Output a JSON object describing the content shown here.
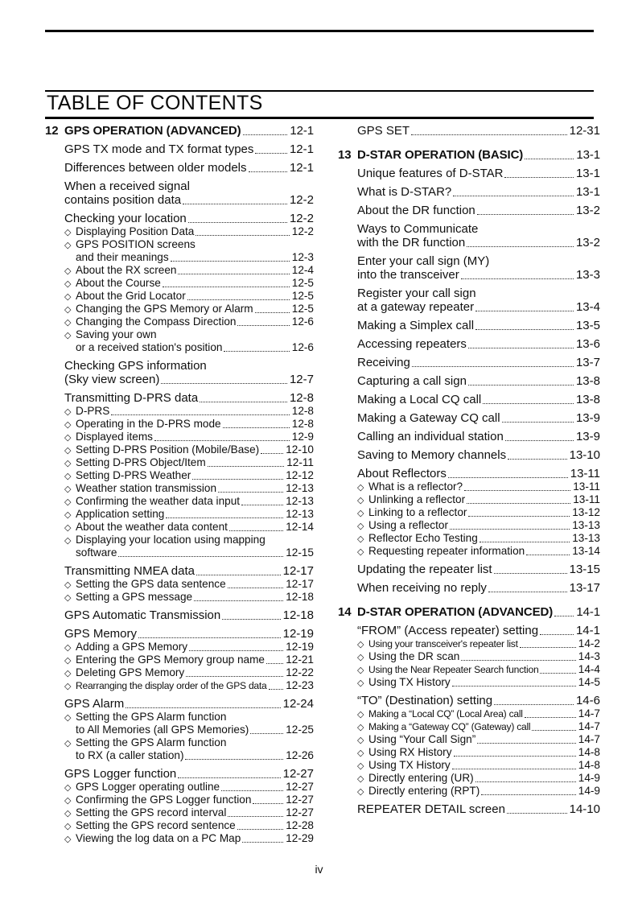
{
  "page": {
    "title": "TABLE OF CONTENTS",
    "footer_page_number": "iv"
  },
  "icons": {
    "subsection_marker": "◇"
  },
  "colors": {
    "text": "#101010",
    "rule": "#000000",
    "background": "#ffffff"
  },
  "toc": {
    "left": [
      {
        "type": "chapter",
        "num": "12",
        "lines": [
          "GPS OPERATION (ADVANCED)"
        ],
        "page": "12-1"
      },
      {
        "type": "section",
        "lines": [
          "GPS TX mode and TX format types"
        ],
        "page": "12-1"
      },
      {
        "type": "section",
        "lines": [
          "Differences between older models"
        ],
        "page": "12-1"
      },
      {
        "type": "section",
        "lines": [
          "When a received signal",
          "contains position data"
        ],
        "page": "12-2"
      },
      {
        "type": "section",
        "lines": [
          "Checking your location"
        ],
        "page": "12-2"
      },
      {
        "type": "sub",
        "lines": [
          "Displaying Position Data"
        ],
        "page": "12-2"
      },
      {
        "type": "sub",
        "lines": [
          "GPS POSITION screens",
          "and their meanings"
        ],
        "page": "12-3"
      },
      {
        "type": "sub",
        "lines": [
          "About the RX screen"
        ],
        "page": "12-4"
      },
      {
        "type": "sub",
        "lines": [
          "About the Course"
        ],
        "page": "12-5"
      },
      {
        "type": "sub",
        "lines": [
          "About the Grid Locator"
        ],
        "page": "12-5"
      },
      {
        "type": "sub",
        "lines": [
          "Changing the GPS Memory or Alarm"
        ],
        "page": "12-5"
      },
      {
        "type": "sub",
        "lines": [
          "Changing the Compass Direction"
        ],
        "page": "12-6"
      },
      {
        "type": "sub",
        "lines": [
          "Saving your own",
          "or a received station's position"
        ],
        "page": "12-6"
      },
      {
        "type": "section",
        "lines": [
          "Checking GPS information",
          "(Sky view screen)"
        ],
        "page": "12-7"
      },
      {
        "type": "section",
        "lines": [
          "Transmitting D-PRS data"
        ],
        "page": "12-8"
      },
      {
        "type": "sub",
        "lines": [
          "D-PRS"
        ],
        "page": "12-8"
      },
      {
        "type": "sub",
        "lines": [
          "Operating in the D-PRS mode"
        ],
        "page": "12-8"
      },
      {
        "type": "sub",
        "lines": [
          "Displayed items"
        ],
        "page": "12-9"
      },
      {
        "type": "sub",
        "lines": [
          "Setting D-PRS Position (Mobile/Base)"
        ],
        "page": "12-10"
      },
      {
        "type": "sub",
        "lines": [
          "Setting D-PRS Object/Item"
        ],
        "page": "12-11"
      },
      {
        "type": "sub",
        "lines": [
          "Setting D-PRS Weather"
        ],
        "page": "12-12"
      },
      {
        "type": "sub",
        "lines": [
          "Weather station transmission"
        ],
        "page": "12-13"
      },
      {
        "type": "sub",
        "lines": [
          "Confirming the weather data input"
        ],
        "page": "12-13"
      },
      {
        "type": "sub",
        "lines": [
          "Application setting"
        ],
        "page": "12-13"
      },
      {
        "type": "sub",
        "lines": [
          "About the weather data content"
        ],
        "page": "12-14"
      },
      {
        "type": "sub",
        "lines": [
          "Displaying your location using mapping",
          "software"
        ],
        "page": "12-15"
      },
      {
        "type": "section",
        "lines": [
          "Transmitting NMEA data"
        ],
        "page": "12-17"
      },
      {
        "type": "sub",
        "lines": [
          "Setting the GPS data sentence"
        ],
        "page": "12-17"
      },
      {
        "type": "sub",
        "lines": [
          "Setting a GPS message"
        ],
        "page": "12-18"
      },
      {
        "type": "section",
        "lines": [
          "GPS Automatic Transmission"
        ],
        "page": "12-18"
      },
      {
        "type": "section",
        "lines": [
          "GPS Memory"
        ],
        "page": "12-19"
      },
      {
        "type": "sub",
        "lines": [
          "Adding a GPS Memory"
        ],
        "page": "12-19"
      },
      {
        "type": "sub",
        "lines": [
          "Entering the GPS Memory group name"
        ],
        "page": "12-21"
      },
      {
        "type": "sub",
        "lines": [
          "Deleting GPS Memory"
        ],
        "page": "12-22"
      },
      {
        "type": "sub",
        "small": true,
        "lines": [
          "Rearranging the display order of the GPS data"
        ],
        "page": "12-23"
      },
      {
        "type": "section",
        "lines": [
          "GPS Alarm"
        ],
        "page": "12-24"
      },
      {
        "type": "sub",
        "lines": [
          "Setting the GPS Alarm function",
          "to All Memories (all GPS Memories)"
        ],
        "page": "12-25"
      },
      {
        "type": "sub",
        "lines": [
          "Setting the GPS Alarm function",
          "to RX (a caller station)"
        ],
        "page": "12-26"
      },
      {
        "type": "section",
        "lines": [
          "GPS Logger function"
        ],
        "page": "12-27"
      },
      {
        "type": "sub",
        "lines": [
          "GPS Logger operating outline"
        ],
        "page": "12-27"
      },
      {
        "type": "sub",
        "lines": [
          "Confirming the GPS Logger function"
        ],
        "page": "12-27"
      },
      {
        "type": "sub",
        "lines": [
          "Setting the GPS record interval"
        ],
        "page": "12-27"
      },
      {
        "type": "sub",
        "lines": [
          "Setting the GPS record sentence"
        ],
        "page": "12-28"
      },
      {
        "type": "sub",
        "lines": [
          "Viewing the log data on a PC Map"
        ],
        "page": "12-29"
      }
    ],
    "right": [
      {
        "type": "section",
        "lines": [
          "GPS SET"
        ],
        "page": "12-31"
      },
      {
        "type": "chapter",
        "num": "13",
        "lines": [
          "D-STAR OPERATION (BASIC)"
        ],
        "page": "13-1"
      },
      {
        "type": "section",
        "lines": [
          "Unique features of D-STAR"
        ],
        "page": "13-1"
      },
      {
        "type": "section",
        "lines": [
          "What is D-STAR?"
        ],
        "page": "13-1"
      },
      {
        "type": "section",
        "lines": [
          "About the DR function"
        ],
        "page": "13-2"
      },
      {
        "type": "section",
        "lines": [
          "Ways to Communicate",
          "with the DR function"
        ],
        "page": "13-2"
      },
      {
        "type": "section",
        "lines": [
          "Enter your call sign (MY)",
          "into the transceiver"
        ],
        "page": "13-3"
      },
      {
        "type": "section",
        "lines": [
          "Register your call sign",
          "at a gateway repeater"
        ],
        "page": "13-4"
      },
      {
        "type": "section",
        "lines": [
          "Making a Simplex call"
        ],
        "page": "13-5"
      },
      {
        "type": "section",
        "lines": [
          "Accessing repeaters"
        ],
        "page": "13-6"
      },
      {
        "type": "section",
        "lines": [
          "Receiving"
        ],
        "page": "13-7"
      },
      {
        "type": "section",
        "lines": [
          "Capturing a call sign"
        ],
        "page": "13-8"
      },
      {
        "type": "section",
        "lines": [
          "Making a Local CQ call"
        ],
        "page": "13-8"
      },
      {
        "type": "section",
        "lines": [
          "Making a Gateway CQ call"
        ],
        "page": "13-9"
      },
      {
        "type": "section",
        "lines": [
          "Calling an individual station"
        ],
        "page": "13-9"
      },
      {
        "type": "section",
        "lines": [
          "Saving to Memory channels"
        ],
        "page": "13-10"
      },
      {
        "type": "section",
        "lines": [
          "About Reflectors"
        ],
        "page": "13-11"
      },
      {
        "type": "sub",
        "lines": [
          "What is a reflector?"
        ],
        "page": "13-11"
      },
      {
        "type": "sub",
        "lines": [
          "Unlinking a reflector"
        ],
        "page": "13-11"
      },
      {
        "type": "sub",
        "lines": [
          "Linking to a reflector"
        ],
        "page": "13-12"
      },
      {
        "type": "sub",
        "lines": [
          "Using a reflector"
        ],
        "page": "13-13"
      },
      {
        "type": "sub",
        "lines": [
          "Reflector Echo Testing"
        ],
        "page": "13-13"
      },
      {
        "type": "sub",
        "lines": [
          "Requesting repeater information"
        ],
        "page": "13-14"
      },
      {
        "type": "section",
        "lines": [
          "Updating the repeater list"
        ],
        "page": "13-15"
      },
      {
        "type": "section",
        "lines": [
          "When receiving no reply"
        ],
        "page": "13-17"
      },
      {
        "type": "chapter",
        "num": "14",
        "lines": [
          "D-STAR OPERATION (ADVANCED)"
        ],
        "page": "14-1"
      },
      {
        "type": "section",
        "lines": [
          "“FROM” (Access repeater) setting"
        ],
        "page": "14-1"
      },
      {
        "type": "sub",
        "small": true,
        "lines": [
          "Using your transceiver's repeater list"
        ],
        "page": "14-2"
      },
      {
        "type": "sub",
        "lines": [
          "Using the DR scan"
        ],
        "page": "14-3"
      },
      {
        "type": "sub",
        "small": true,
        "lines": [
          "Using the Near Repeater Search function"
        ],
        "page": "14-4"
      },
      {
        "type": "sub",
        "lines": [
          "Using TX History"
        ],
        "page": "14-5"
      },
      {
        "type": "section",
        "lines": [
          "“TO” (Destination) setting"
        ],
        "page": "14-6"
      },
      {
        "type": "sub",
        "small": true,
        "lines": [
          "Making a “Local CQ” (Local Area) call"
        ],
        "page": "14-7"
      },
      {
        "type": "sub",
        "small": true,
        "lines": [
          "Making a “Gateway CQ” (Gateway) call"
        ],
        "page": "14-7"
      },
      {
        "type": "sub",
        "lines": [
          "Using “Your Call Sign”"
        ],
        "page": "14-7"
      },
      {
        "type": "sub",
        "lines": [
          "Using RX History"
        ],
        "page": "14-8"
      },
      {
        "type": "sub",
        "lines": [
          "Using TX History"
        ],
        "page": "14-8"
      },
      {
        "type": "sub",
        "lines": [
          "Directly entering (UR)"
        ],
        "page": "14-9"
      },
      {
        "type": "sub",
        "lines": [
          "Directly entering (RPT)"
        ],
        "page": "14-9"
      },
      {
        "type": "section",
        "lines": [
          "REPEATER DETAIL screen"
        ],
        "page": "14-10"
      }
    ]
  }
}
